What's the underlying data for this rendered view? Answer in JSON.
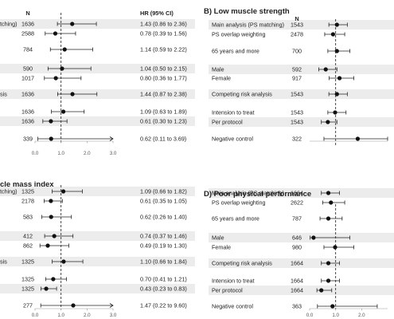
{
  "chart_data": [
    {
      "type": "forest",
      "title": "",
      "header_n": "N",
      "header_hr": "HR (95% CI)",
      "xlim": [
        0,
        3
      ],
      "ticks": [
        "0.0",
        "1.0",
        "2.0",
        "3.0"
      ],
      "reference_line": 1.0,
      "rows": [
        {
          "label": "tching)",
          "n": "1636",
          "hr": 1.43,
          "lo": 0.86,
          "hi": 2.36,
          "text": "1.43 (0.86 to 2.36)"
        },
        {
          "label": "",
          "n": "2588",
          "hr": 0.78,
          "lo": 0.39,
          "hi": 1.56,
          "text": "0.78 (0.39 to 1.56)"
        },
        {
          "label": "",
          "n": "784",
          "hr": 1.14,
          "lo": 0.59,
          "hi": 2.22,
          "text": "1.14 (0.59 to 2.22)"
        },
        {
          "label": "",
          "n": "590",
          "hr": 1.04,
          "lo": 0.5,
          "hi": 2.15,
          "text": "1.04 (0.50 to 2.15)"
        },
        {
          "label": "",
          "n": "1017",
          "hr": 0.8,
          "lo": 0.36,
          "hi": 1.77,
          "text": "0.80 (0.36 to 1.77)"
        },
        {
          "label": "sis",
          "n": "1636",
          "hr": 1.44,
          "lo": 0.87,
          "hi": 2.38,
          "text": "1.44 (0.87 to 2.38)"
        },
        {
          "label": "",
          "n": "1636",
          "hr": 1.09,
          "lo": 0.63,
          "hi": 1.89,
          "text": "1.09 (0.63 to 1.89)"
        },
        {
          "label": "",
          "n": "1636",
          "hr": 0.61,
          "lo": 0.3,
          "hi": 1.23,
          "text": "0.61 (0.30 to 1.23)"
        },
        {
          "label": "",
          "n": "339",
          "hr": 0.62,
          "lo": 0.11,
          "hi": 3.69,
          "text": "0.62 (0.11 to 3.69)"
        }
      ]
    },
    {
      "type": "forest",
      "title": "B) Low muscle strength",
      "header_n": "N",
      "header_hr": "",
      "xlim": [
        0,
        3
      ],
      "ticks": [],
      "reference_line": 1.0,
      "rows": [
        {
          "label": "Main analysis (PS matching)",
          "n": "1543",
          "hr": 1.05,
          "lo": 0.74,
          "hi": 1.45
        },
        {
          "label": "PS overlap weighting",
          "n": "2478",
          "hr": 0.9,
          "lo": 0.58,
          "hi": 1.35
        },
        {
          "label": "65 years and more",
          "n": "700",
          "hr": 1.05,
          "lo": 0.7,
          "hi": 1.55
        },
        {
          "label": "Male",
          "n": "592",
          "hr": 0.62,
          "lo": 0.35,
          "hi": 1.05
        },
        {
          "label": "Female",
          "n": "917",
          "hr": 1.15,
          "lo": 0.75,
          "hi": 1.7
        },
        {
          "label": "Competing risk analysis",
          "n": "1543",
          "hr": 1.05,
          "lo": 0.74,
          "hi": 1.45
        },
        {
          "label": "Intension to treat",
          "n": "1543",
          "hr": 0.98,
          "lo": 0.7,
          "hi": 1.4
        },
        {
          "label": "Per protocol",
          "n": "1543",
          "hr": 0.7,
          "lo": 0.45,
          "hi": 1.05
        },
        {
          "label": "Negative control",
          "n": "322",
          "hr": 1.85,
          "lo": 0.55,
          "hi": 3.0
        }
      ]
    },
    {
      "type": "forest",
      "title": "cle mass index",
      "header_n": "",
      "header_hr": "",
      "xlim": [
        0,
        3
      ],
      "ticks": [
        "0.0",
        "1.0",
        "2.0",
        "3.0"
      ],
      "reference_line": 1.0,
      "rows": [
        {
          "label": "tching)",
          "n": "1325",
          "hr": 1.09,
          "lo": 0.66,
          "hi": 1.82,
          "text": "1.09 (0.66 to 1.82)"
        },
        {
          "label": "",
          "n": "2178",
          "hr": 0.61,
          "lo": 0.35,
          "hi": 1.05,
          "text": "0.61 (0.35 to 1.05)"
        },
        {
          "label": "",
          "n": "583",
          "hr": 0.62,
          "lo": 0.26,
          "hi": 1.4,
          "text": "0.62 (0.26 to 1.40)"
        },
        {
          "label": "",
          "n": "412",
          "hr": 0.74,
          "lo": 0.37,
          "hi": 1.46,
          "text": "0.74 (0.37 to 1.46)"
        },
        {
          "label": "",
          "n": "862",
          "hr": 0.49,
          "lo": 0.19,
          "hi": 1.3,
          "text": "0.49 (0.19 to 1.30)"
        },
        {
          "label": "sis",
          "n": "1325",
          "hr": 1.1,
          "lo": 0.66,
          "hi": 1.84,
          "text": "1.10 (0.66 to 1.84)"
        },
        {
          "label": "",
          "n": "1325",
          "hr": 0.7,
          "lo": 0.41,
          "hi": 1.21,
          "text": "0.70 (0.41 to 1.21)"
        },
        {
          "label": "",
          "n": "1325",
          "hr": 0.43,
          "lo": 0.23,
          "hi": 0.83,
          "text": "0.43 (0.23 to 0.83)"
        },
        {
          "label": "",
          "n": "277",
          "hr": 1.47,
          "lo": 0.22,
          "hi": 9.6,
          "text": "1.47 (0.22 to 9.60)"
        }
      ]
    },
    {
      "type": "forest",
      "title": "D) Poor physical performance",
      "header_n": "",
      "header_hr": "",
      "xlim": [
        0,
        3
      ],
      "ticks": [
        "0.0",
        "1.0",
        "2.0"
      ],
      "reference_line": 1.0,
      "rows": [
        {
          "label": "Main analysis (PS matching)",
          "n": "1664",
          "hr": 0.72,
          "lo": 0.45,
          "hi": 1.15
        },
        {
          "label": "PS overlap weighting",
          "n": "2622",
          "hr": 0.82,
          "lo": 0.5,
          "hi": 1.35
        },
        {
          "label": "65 years and more",
          "n": "787",
          "hr": 0.72,
          "lo": 0.4,
          "hi": 1.25
        },
        {
          "label": "Male",
          "n": "646",
          "hr": 0.15,
          "lo": 0.02,
          "hi": 1.55
        },
        {
          "label": "Female",
          "n": "980",
          "hr": 0.98,
          "lo": 0.55,
          "hi": 1.7
        },
        {
          "label": "Competing risk analysis",
          "n": "1664",
          "hr": 0.72,
          "lo": 0.45,
          "hi": 1.15
        },
        {
          "label": "Intension to treat",
          "n": "1664",
          "hr": 0.72,
          "lo": 0.45,
          "hi": 1.15
        },
        {
          "label": "Per protocol",
          "n": "1664",
          "hr": 0.45,
          "lo": 0.28,
          "hi": 0.85
        },
        {
          "label": "Negative control",
          "n": "363",
          "hr": 0.88,
          "lo": 0.3,
          "hi": 2.6
        }
      ]
    }
  ]
}
